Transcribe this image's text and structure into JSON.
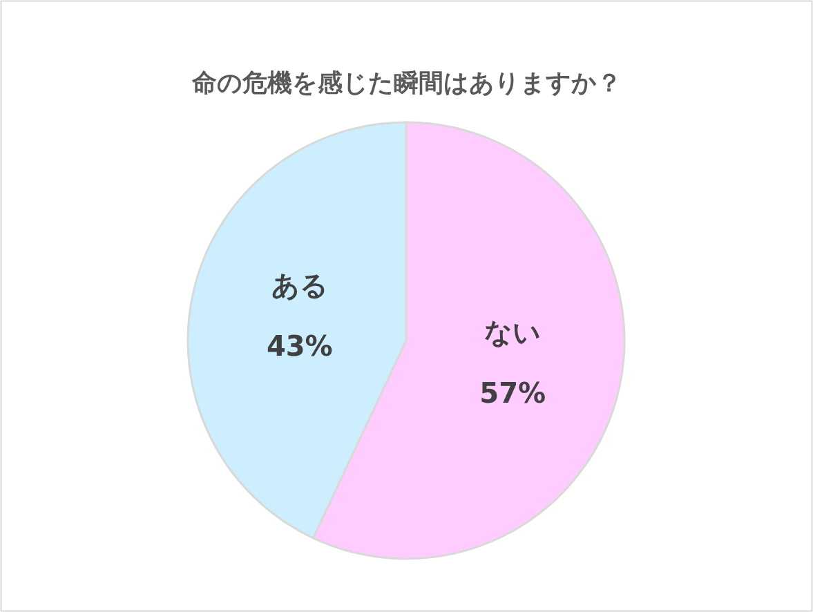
{
  "chart_data": {
    "type": "pie",
    "title": "命の危機を感じた瞬間はありますか？",
    "categories": [
      "ない",
      "ある"
    ],
    "values": [
      57,
      43
    ],
    "value_labels": [
      "57%",
      "43%"
    ],
    "colors": [
      "#ffccff",
      "#cceeff"
    ]
  }
}
